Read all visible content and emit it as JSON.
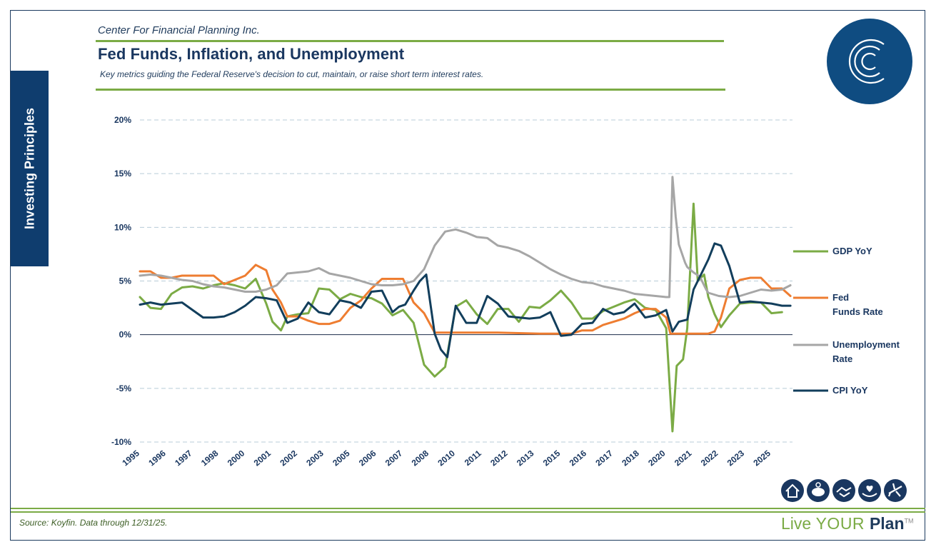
{
  "header": {
    "company": "Center For Financial Planning Inc.",
    "title": "Fed Funds, Inflation, and Unemployment",
    "subtitle": "Key metrics guiding the Federal Reserve's decision to cut, maintain, or raise short term interest rates."
  },
  "side_tab": {
    "label": "Investing Principles"
  },
  "footer": {
    "source": "Source: Koyfin. Data through 12/31/25.",
    "brand_live": "Live ",
    "brand_your": "YOUR ",
    "brand_plan": "Plan",
    "brand_tm": "TM"
  },
  "icons": [
    "house-icon",
    "piggy-bank-icon",
    "handshake-icon",
    "heart-hand-icon",
    "airplane-icon"
  ],
  "colors": {
    "navy": "#1a3760",
    "green": "#7bab45",
    "orange": "#ee7d31",
    "gray": "#a6a6a6",
    "cpi": "#123e5c"
  },
  "chart_data": {
    "type": "line",
    "title": "Fed Funds, Inflation, and Unemployment",
    "xlabel": "",
    "ylabel": "",
    "xlim": [
      1995.0,
      2026.0
    ],
    "ylim": [
      -10,
      20
    ],
    "yticks": [
      -10,
      -5,
      0,
      5,
      10,
      15,
      20
    ],
    "ytick_labels": [
      "-10%",
      "-5%",
      "0%",
      "5%",
      "10%",
      "15%",
      "20%"
    ],
    "xtick_labels": [
      "1995",
      "1996",
      "1997",
      "1998",
      "2000",
      "2001",
      "2002",
      "2003",
      "2005",
      "2006",
      "2007",
      "2008",
      "2010",
      "2011",
      "2012",
      "2013",
      "2015",
      "2016",
      "2017",
      "2018",
      "2020",
      "2021",
      "2022",
      "2023",
      "2025"
    ],
    "grid": "horizontal dashed",
    "legend_position": "right",
    "series": [
      {
        "name": "GDP YoY",
        "color": "#7bab45",
        "x": [
          1995.0,
          1995.5,
          1996.0,
          1996.5,
          1997.0,
          1997.5,
          1998.0,
          1998.5,
          1999.0,
          1999.5,
          2000.0,
          2000.5,
          2001.0,
          2001.3,
          2001.7,
          2002.0,
          2002.5,
          2003.0,
          2003.5,
          2004.0,
          2004.5,
          2005.0,
          2005.5,
          2006.0,
          2006.5,
          2007.0,
          2007.5,
          2008.0,
          2008.5,
          2009.0,
          2009.5,
          2010.0,
          2010.5,
          2011.0,
          2011.5,
          2012.0,
          2012.5,
          2013.0,
          2013.5,
          2014.0,
          2014.5,
          2015.0,
          2015.5,
          2016.0,
          2016.5,
          2017.0,
          2017.5,
          2018.0,
          2018.5,
          2019.0,
          2019.5,
          2020.0,
          2020.3,
          2020.5,
          2020.8,
          2021.0,
          2021.3,
          2021.5,
          2021.8,
          2022.0,
          2022.3,
          2022.6,
          2023.0,
          2023.5,
          2024.0,
          2024.5,
          2025.0,
          2025.5
        ],
        "values": [
          3.5,
          2.5,
          2.4,
          3.8,
          4.4,
          4.5,
          4.3,
          4.6,
          4.8,
          4.6,
          4.3,
          5.2,
          2.9,
          1.2,
          0.4,
          1.7,
          1.9,
          2.0,
          4.3,
          4.2,
          3.3,
          3.8,
          3.5,
          3.4,
          2.9,
          1.8,
          2.3,
          1.1,
          -2.8,
          -3.9,
          -3.0,
          2.6,
          3.2,
          1.9,
          1.0,
          2.4,
          2.4,
          1.2,
          2.6,
          2.5,
          3.2,
          4.1,
          3.0,
          1.5,
          1.5,
          2.2,
          2.6,
          3.0,
          3.3,
          2.5,
          2.3,
          0.6,
          -9.0,
          -2.9,
          -2.3,
          0.6,
          12.2,
          5.0,
          5.6,
          3.5,
          1.9,
          0.7,
          1.8,
          2.9,
          3.0,
          3.0,
          2.0,
          2.1
        ]
      },
      {
        "name": "Fed Funds Rate",
        "color": "#ee7d31",
        "x": [
          1995.0,
          1995.5,
          1996.0,
          1996.5,
          1997.0,
          1997.5,
          1998.0,
          1998.5,
          1999.0,
          1999.5,
          2000.0,
          2000.5,
          2001.0,
          2001.3,
          2001.7,
          2002.0,
          2002.5,
          2003.0,
          2003.5,
          2004.0,
          2004.5,
          2005.0,
          2005.5,
          2006.0,
          2006.5,
          2007.0,
          2007.5,
          2008.0,
          2008.5,
          2009.0,
          2009.5,
          2010.0,
          2012.0,
          2014.0,
          2015.0,
          2015.5,
          2016.0,
          2016.5,
          2017.0,
          2017.5,
          2018.0,
          2018.5,
          2019.0,
          2019.5,
          2020.0,
          2020.2,
          2020.5,
          2021.0,
          2021.5,
          2022.0,
          2022.3,
          2022.6,
          2023.0,
          2023.5,
          2024.0,
          2024.5,
          2025.0,
          2025.5,
          2025.9
        ],
        "values": [
          5.9,
          5.9,
          5.3,
          5.3,
          5.5,
          5.5,
          5.5,
          5.5,
          4.7,
          5.1,
          5.5,
          6.5,
          6.0,
          4.2,
          3.0,
          1.7,
          1.7,
          1.3,
          1.0,
          1.0,
          1.3,
          2.5,
          3.2,
          4.3,
          5.2,
          5.2,
          5.2,
          3.0,
          2.0,
          0.2,
          0.2,
          0.2,
          0.2,
          0.1,
          0.1,
          0.1,
          0.4,
          0.4,
          0.9,
          1.2,
          1.5,
          2.0,
          2.4,
          2.4,
          1.6,
          0.1,
          0.1,
          0.1,
          0.1,
          0.1,
          0.3,
          1.6,
          4.3,
          5.1,
          5.3,
          5.3,
          4.3,
          4.3,
          3.6
        ]
      },
      {
        "name": "Unemployment Rate",
        "color": "#a6a6a6",
        "x": [
          1995.0,
          1995.5,
          1996.0,
          1996.5,
          1997.0,
          1997.5,
          1998.0,
          1998.5,
          1999.0,
          1999.5,
          2000.0,
          2000.5,
          2001.0,
          2001.5,
          2002.0,
          2002.5,
          2003.0,
          2003.5,
          2004.0,
          2004.5,
          2005.0,
          2005.5,
          2006.0,
          2006.5,
          2007.0,
          2007.5,
          2008.0,
          2008.5,
          2009.0,
          2009.5,
          2010.0,
          2010.5,
          2011.0,
          2011.5,
          2012.0,
          2012.5,
          2013.0,
          2013.5,
          2014.0,
          2014.5,
          2015.0,
          2015.5,
          2016.0,
          2016.5,
          2017.0,
          2017.5,
          2018.0,
          2018.5,
          2019.0,
          2019.5,
          2020.0,
          2020.15,
          2020.3,
          2020.45,
          2020.6,
          2020.9,
          2021.0,
          2021.3,
          2021.6,
          2021.9,
          2022.0,
          2022.5,
          2023.0,
          2023.5,
          2024.0,
          2024.5,
          2025.0,
          2025.5,
          2025.9
        ],
        "values": [
          5.5,
          5.6,
          5.5,
          5.3,
          5.1,
          5.0,
          4.7,
          4.5,
          4.4,
          4.2,
          4.0,
          4.0,
          4.2,
          4.6,
          5.7,
          5.8,
          5.9,
          6.2,
          5.7,
          5.5,
          5.3,
          5.0,
          4.7,
          4.6,
          4.6,
          4.7,
          5.0,
          6.1,
          8.3,
          9.6,
          9.8,
          9.5,
          9.1,
          9.0,
          8.3,
          8.1,
          7.8,
          7.3,
          6.7,
          6.1,
          5.6,
          5.2,
          4.9,
          4.8,
          4.5,
          4.3,
          4.1,
          3.8,
          3.7,
          3.6,
          3.5,
          3.5,
          14.7,
          11.0,
          8.4,
          6.7,
          6.3,
          5.8,
          5.4,
          4.2,
          3.9,
          3.6,
          3.5,
          3.6,
          3.9,
          4.2,
          4.1,
          4.2,
          4.6
        ]
      },
      {
        "name": "CPI YoY",
        "color": "#123e5c",
        "x": [
          1995.0,
          1995.5,
          1996.0,
          1996.5,
          1997.0,
          1997.5,
          1998.0,
          1998.5,
          1999.0,
          1999.5,
          2000.0,
          2000.5,
          2001.0,
          2001.5,
          2002.0,
          2002.5,
          2003.0,
          2003.5,
          2004.0,
          2004.5,
          2005.0,
          2005.5,
          2006.0,
          2006.5,
          2007.0,
          2007.3,
          2007.6,
          2008.0,
          2008.3,
          2008.6,
          2009.0,
          2009.3,
          2009.6,
          2010.0,
          2010.5,
          2011.0,
          2011.5,
          2012.0,
          2012.5,
          2013.0,
          2013.5,
          2014.0,
          2014.5,
          2015.0,
          2015.5,
          2016.0,
          2016.5,
          2017.0,
          2017.5,
          2018.0,
          2018.5,
          2019.0,
          2019.5,
          2020.0,
          2020.3,
          2020.6,
          2021.0,
          2021.3,
          2021.6,
          2022.0,
          2022.3,
          2022.6,
          2023.0,
          2023.5,
          2024.0,
          2024.5,
          2025.0,
          2025.5,
          2025.9
        ],
        "values": [
          2.8,
          3.0,
          2.8,
          2.9,
          3.0,
          2.3,
          1.6,
          1.6,
          1.7,
          2.1,
          2.7,
          3.5,
          3.4,
          3.2,
          1.1,
          1.5,
          3.0,
          2.1,
          1.9,
          3.2,
          3.0,
          2.5,
          4.0,
          4.1,
          2.1,
          2.6,
          2.8,
          4.1,
          5.0,
          5.6,
          0.1,
          -1.4,
          -2.1,
          2.7,
          1.1,
          1.1,
          3.6,
          2.9,
          1.7,
          1.6,
          1.5,
          1.6,
          2.1,
          -0.1,
          0.0,
          1.0,
          1.1,
          2.4,
          1.9,
          2.1,
          2.9,
          1.6,
          1.8,
          2.3,
          0.3,
          1.2,
          1.4,
          4.2,
          5.4,
          7.0,
          8.5,
          8.3,
          6.4,
          3.0,
          3.1,
          3.0,
          2.9,
          2.7,
          2.7
        ]
      }
    ]
  }
}
